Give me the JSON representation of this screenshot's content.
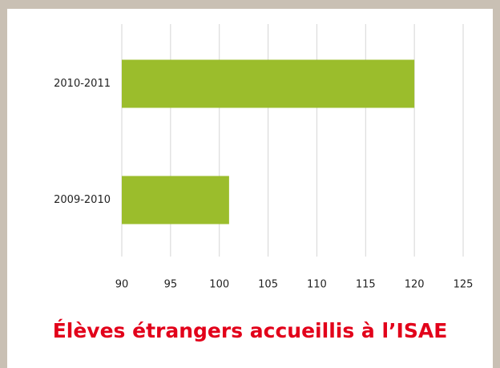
{
  "chart_data": {
    "type": "bar",
    "orientation": "horizontal",
    "title": "Élèves étrangers accueillis à l’ISAE",
    "categories": [
      "2010-2011",
      "2009-2010"
    ],
    "values": [
      120,
      101
    ],
    "color": "#9bbd2c",
    "xlim": [
      90,
      125
    ],
    "xticks": [
      90,
      95,
      100,
      105,
      110,
      115,
      120,
      125
    ],
    "grid": true
  }
}
